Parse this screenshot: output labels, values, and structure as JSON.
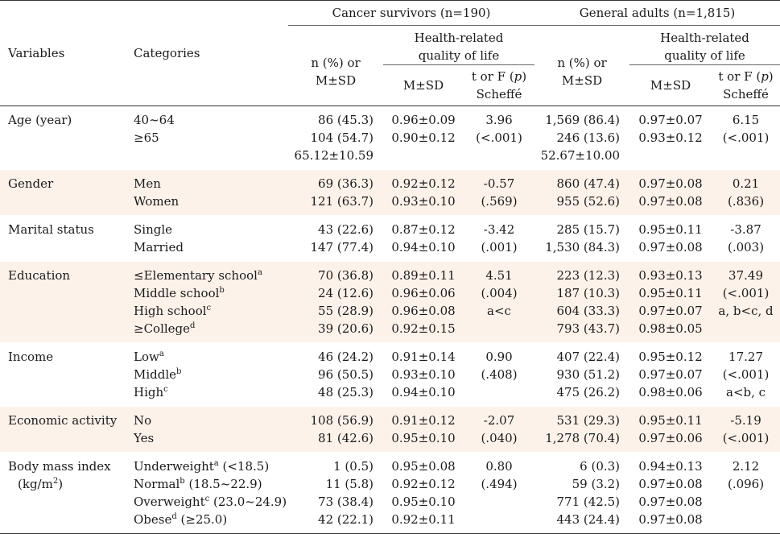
{
  "header": {
    "variables": "Variables",
    "categories": "Categories",
    "group1": "Cancer survivors (n=190)",
    "group2": "General adults (n=1,815)",
    "n_pct_l1": "n (%) or",
    "n_pct_l2": "M±SD",
    "hrql_l1": "Health-related",
    "hrql_l2": "quality of life",
    "msd": "M±SD",
    "tf_l1_pre": "t or F (",
    "tf_l1_p": "p",
    "tf_l1_post": ")",
    "tf_l2": "Scheffé"
  },
  "rows": [
    {
      "var": [
        "Age (year)"
      ],
      "cats": [
        {
          "t": "40~64",
          "s": ""
        },
        {
          "t": "≥65",
          "s": ""
        }
      ],
      "c_n": [
        "86 (45.3)",
        "104 (54.7)",
        "65.12±10.59"
      ],
      "c_ms": [
        "0.96±0.09",
        "0.90±0.12"
      ],
      "c_tf": [
        "3.96",
        "(<.001)"
      ],
      "g_n": [
        "1,569 (86.4)",
        "246 (13.6)",
        "52.67±10.00"
      ],
      "g_ms": [
        "0.97±0.07",
        "0.93±0.12"
      ],
      "g_tf": [
        "6.15",
        "(<.001)"
      ]
    },
    {
      "var": [
        "Gender"
      ],
      "cats": [
        {
          "t": "Men",
          "s": ""
        },
        {
          "t": "Women",
          "s": ""
        }
      ],
      "c_n": [
        "69 (36.3)",
        "121 (63.7)"
      ],
      "c_ms": [
        "0.92±0.12",
        "0.93±0.10"
      ],
      "c_tf": [
        "-0.57",
        "(.569)"
      ],
      "g_n": [
        "860 (47.4)",
        "955 (52.6)"
      ],
      "g_ms": [
        "0.97±0.08",
        "0.97±0.08"
      ],
      "g_tf": [
        "0.21",
        "(.836)"
      ]
    },
    {
      "var": [
        "Marital status"
      ],
      "cats": [
        {
          "t": "Single",
          "s": ""
        },
        {
          "t": "Married",
          "s": ""
        }
      ],
      "c_n": [
        "43 (22.6)",
        "147 (77.4)"
      ],
      "c_ms": [
        "0.87±0.12",
        "0.94±0.10"
      ],
      "c_tf": [
        "-3.42",
        "(.001)"
      ],
      "g_n": [
        "285 (15.7)",
        "1,530 (84.3)"
      ],
      "g_ms": [
        "0.95±0.11",
        "0.97±0.08"
      ],
      "g_tf": [
        "-3.87",
        "(.003)"
      ]
    },
    {
      "var": [
        "Education"
      ],
      "cats": [
        {
          "t": "≤Elementary school",
          "s": "a",
          "r": ""
        },
        {
          "t": "Middle school",
          "s": "b",
          "r": ""
        },
        {
          "t": "High school",
          "s": "c",
          "r": ""
        },
        {
          "t": "≥College",
          "s": "d",
          "r": ""
        }
      ],
      "c_n": [
        "70 (36.8)",
        "24 (12.6)",
        "55 (28.9)",
        "39 (20.6)"
      ],
      "c_ms": [
        "0.89±0.11",
        "0.96±0.06",
        "0.96±0.08",
        "0.92±0.15"
      ],
      "c_tf": [
        "4.51",
        "(.004)",
        "a<c"
      ],
      "g_n": [
        "223 (12.3)",
        "187 (10.3)",
        "604 (33.3)",
        "793 (43.7)"
      ],
      "g_ms": [
        "0.93±0.13",
        "0.95±0.11",
        "0.97±0.07",
        "0.98±0.05"
      ],
      "g_tf": [
        "37.49",
        "(<.001)",
        "a, b<c, d"
      ]
    },
    {
      "var": [
        "Income"
      ],
      "cats": [
        {
          "t": "Low",
          "s": "a",
          "r": ""
        },
        {
          "t": "Middle",
          "s": "b",
          "r": ""
        },
        {
          "t": "High",
          "s": "c",
          "r": ""
        }
      ],
      "c_n": [
        "46 (24.2)",
        "96 (50.5)",
        "48 (25.3)"
      ],
      "c_ms": [
        "0.91±0.14",
        "0.93±0.10",
        "0.94±0.10"
      ],
      "c_tf": [
        "0.90",
        "(.408)"
      ],
      "g_n": [
        "407 (22.4)",
        "930 (51.2)",
        "475 (26.2)"
      ],
      "g_ms": [
        "0.95±0.12",
        "0.97±0.07",
        "0.98±0.06"
      ],
      "g_tf": [
        "17.27",
        "(<.001)",
        "a<b, c"
      ]
    },
    {
      "var": [
        "Economic activity"
      ],
      "cats": [
        {
          "t": "No",
          "s": ""
        },
        {
          "t": "Yes",
          "s": ""
        }
      ],
      "c_n": [
        "108 (56.9)",
        "81 (42.6)"
      ],
      "c_ms": [
        "0.91±0.12",
        "0.95±0.10"
      ],
      "c_tf": [
        "-2.07",
        "(.040)"
      ],
      "g_n": [
        "531 (29.3)",
        "1,278 (70.4)"
      ],
      "g_ms": [
        "0.95±0.11",
        "0.97±0.06"
      ],
      "g_tf": [
        "-5.19",
        "(<.001)"
      ]
    },
    {
      "var": [
        "Body mass index",
        "(kg/m",
        "2",
        ")"
      ],
      "cats": [
        {
          "t": "Underweight",
          "s": "a",
          "r": " (<18.5)"
        },
        {
          "t": "Normal",
          "s": "b",
          "r": " (18.5~22.9)"
        },
        {
          "t": "Overweight",
          "s": "c",
          "r": " (23.0~24.9)"
        },
        {
          "t": "Obese",
          "s": "d",
          "r": " (≥25.0)"
        }
      ],
      "c_n": [
        "1 (0.5)",
        "11 (5.8)",
        "73 (38.4)",
        "42 (22.1)"
      ],
      "c_ms": [
        "0.95±0.08",
        "0.92±0.12",
        "0.95±0.10",
        "0.92±0.11"
      ],
      "c_tf": [
        "0.80",
        "(.494)"
      ],
      "g_n": [
        "6 (0.3)",
        "59 (3.2)",
        "771 (42.5)",
        "443 (24.4)"
      ],
      "g_ms": [
        "0.94±0.13",
        "0.97±0.08",
        "0.97±0.08",
        "0.97±0.08"
      ],
      "g_tf": [
        "2.12",
        "(.096)"
      ]
    }
  ]
}
